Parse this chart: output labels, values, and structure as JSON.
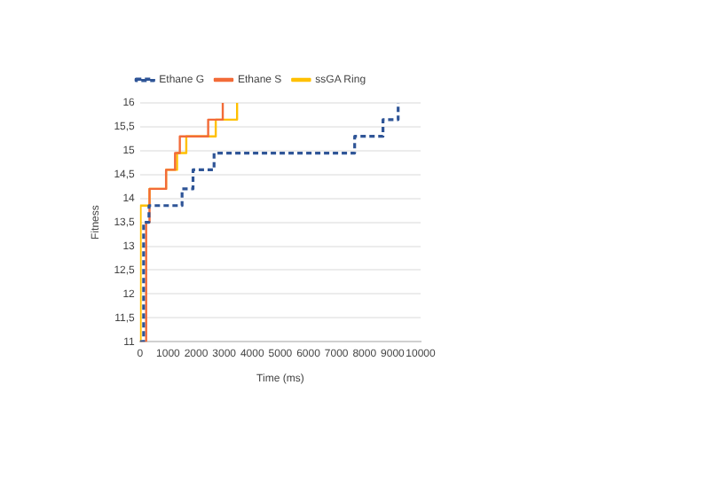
{
  "chart_data": {
    "type": "step",
    "xlabel": "Time (ms)",
    "ylabel": "Fitness",
    "legend": "top",
    "grid": "y",
    "marker": "none",
    "xlim": [
      0,
      10000
    ],
    "xticks": [
      0,
      1000,
      2000,
      3000,
      4000,
      5000,
      6000,
      7000,
      8000,
      9000,
      10000
    ],
    "ylim": [
      11,
      16
    ],
    "yticks": [
      11,
      {
        "value": 11.5,
        "label": "11,5"
      },
      12,
      {
        "value": 12.5,
        "label": "12,5"
      },
      13,
      {
        "value": 13.5,
        "label": "13,5"
      },
      14,
      {
        "value": 14.5,
        "label": "14,5"
      },
      15,
      {
        "value": 15.5,
        "label": "15,5"
      },
      16
    ],
    "series": [
      {
        "name": "Ethane G",
        "color": "#2f5597",
        "line_style": "dashed",
        "x": [
          0,
          130,
          320,
          1500,
          1890,
          2640,
          7650,
          8660,
          9200
        ],
        "values": [
          11,
          13.5,
          13.85,
          14.2,
          14.6,
          14.95,
          15.3,
          15.65,
          16
        ]
      },
      {
        "name": "Ethane S",
        "color": "#f26b38",
        "line_style": "solid",
        "x": [
          0,
          220,
          340,
          930,
          1250,
          1420,
          2430,
          2950
        ],
        "values": [
          11,
          13.5,
          14.2,
          14.6,
          14.95,
          15.3,
          15.65,
          16
        ]
      },
      {
        "name": "ssGA Ring",
        "color": "#ffc000",
        "line_style": "solid",
        "x": [
          0,
          20,
          340,
          930,
          1320,
          1650,
          2700,
          3460
        ],
        "values": [
          11,
          13.85,
          14.2,
          14.6,
          14.95,
          15.3,
          15.65,
          16
        ]
      }
    ]
  }
}
